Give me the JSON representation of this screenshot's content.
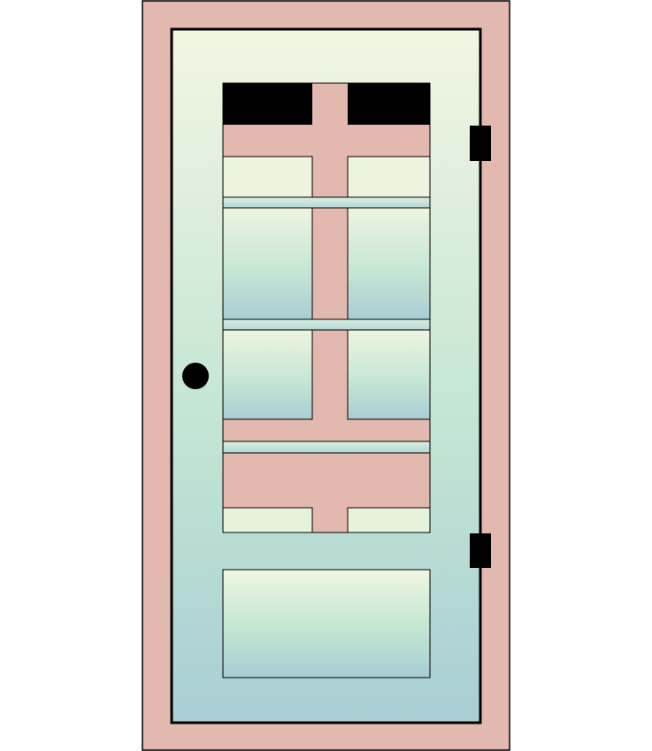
{
  "illustration": {
    "subject": "door",
    "colors": {
      "frame": "#E3B8AF",
      "outline": "#000000",
      "panel_light": "#F0F5E1",
      "panel_mid": "#C8E8D5",
      "panel_dark": "#A7CDD3",
      "hardware": "#000000",
      "background": "#FFFFFF"
    },
    "parts": [
      "door-frame",
      "door-slab",
      "window-grid",
      "lower-panel",
      "doorknob",
      "top-hinge",
      "bottom-hinge"
    ]
  }
}
